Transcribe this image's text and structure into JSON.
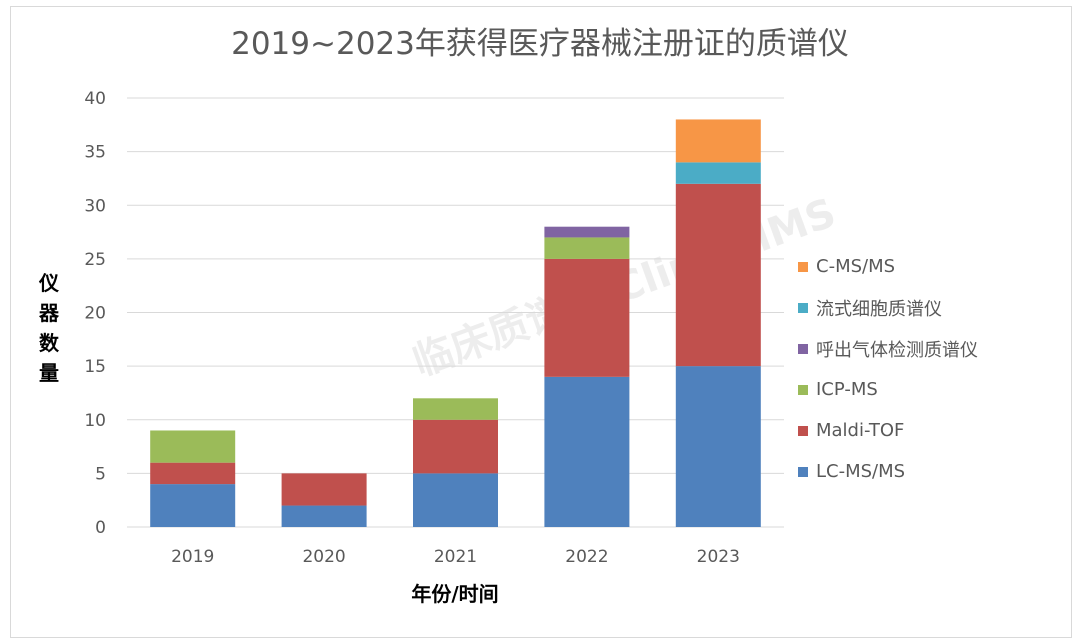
{
  "chart_data": {
    "type": "bar",
    "stacked": true,
    "title": "2019~2023年获得医疗器械注册证的质谱仪",
    "xlabel": "年份/时间",
    "ylabel": "仪器数量",
    "ylim": [
      0,
      40
    ],
    "yticks": [
      0,
      5,
      10,
      15,
      20,
      25,
      30,
      35,
      40
    ],
    "grid": true,
    "legend_position": "right",
    "categories": [
      "2019",
      "2020",
      "2021",
      "2022",
      "2023"
    ],
    "series": [
      {
        "name": "LC-MS/MS",
        "color": "#4f81bd",
        "values": [
          4,
          2,
          5,
          14,
          15
        ]
      },
      {
        "name": "Maldi-TOF",
        "color": "#c0504d",
        "values": [
          2,
          3,
          5,
          11,
          17
        ]
      },
      {
        "name": "ICP-MS",
        "color": "#9bbb59",
        "values": [
          3,
          0,
          2,
          2,
          0
        ]
      },
      {
        "name": "呼出气体检测质谱仪",
        "color": "#8064a2",
        "values": [
          0,
          0,
          0,
          1,
          0
        ]
      },
      {
        "name": "流式细胞质谱仪",
        "color": "#4bacc6",
        "values": [
          0,
          0,
          0,
          0,
          2
        ]
      },
      {
        "name": "C-MS/MS",
        "color": "#f79646",
        "values": [
          0,
          0,
          0,
          0,
          4
        ]
      }
    ]
  },
  "watermark": "临床质谱网 ClinicalMS"
}
